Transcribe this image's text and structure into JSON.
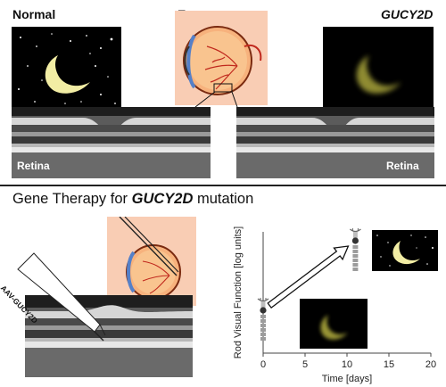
{
  "top": {
    "normal_label": "Normal",
    "eye_label": "Eye",
    "gene_label": "GUCY2D",
    "retina_left_label": "Retina",
    "retina_right_label": "Retina"
  },
  "bottom": {
    "title_prefix": "Gene Therapy for ",
    "title_gene": "GUCY2D",
    "title_suffix": " mutation",
    "needle_label": "AAV-GUCY2D"
  },
  "chart_data": {
    "type": "scatter",
    "xlabel": "Time [days]",
    "ylabel": "Rod Visual Function [log units]",
    "x_ticks": [
      "0",
      "5",
      "10",
      "15",
      "20"
    ],
    "xlim": [
      0,
      20
    ],
    "points": [
      {
        "x": 0,
        "level": "low"
      },
      {
        "x": 11,
        "level": "high"
      }
    ]
  },
  "colors": {
    "night_sky": "#000000",
    "moon": "#f2eda4",
    "faint_moon": "#a8a43a",
    "eye_background": "#f9cdb4",
    "eyeball": "#f7b27d",
    "vessels": "#c0281d"
  }
}
